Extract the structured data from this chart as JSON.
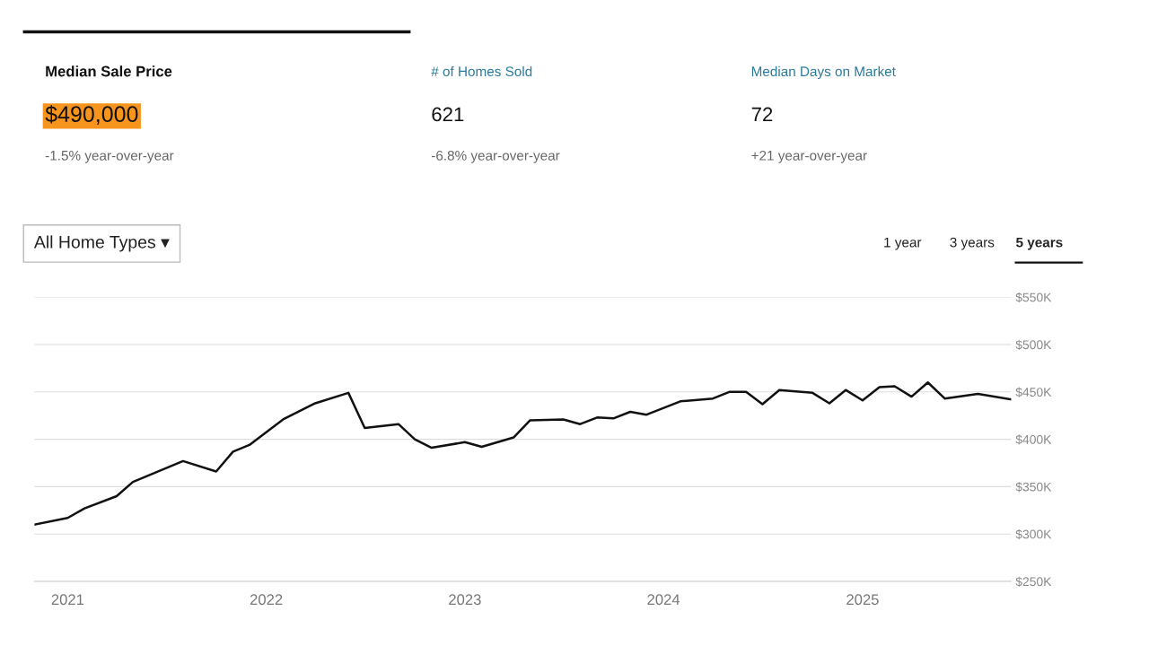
{
  "chart_data": [
    {
      "type": "other",
      "annotations": [
        "Median Sale Price",
        "$490,000",
        "-1.5% year-over-year",
        "# of Homes Sold",
        "621",
        "-6.8% year-over-year",
        "Median Days on Market",
        "72",
        "+21 year-over-year",
        "All Home Types ▾",
        "1 year",
        "3 years",
        "5 years"
      ]
    },
    {
      "type": "line",
      "x": [
        "2020-11",
        "2021-01",
        "2021-02",
        "2021-04",
        "2021-05",
        "2021-08",
        "2021-10",
        "2021-11",
        "2021-12",
        "2022-02",
        "2022-04",
        "2022-06",
        "2022-07",
        "2022-09",
        "2022-10",
        "2022-11",
        "2023-01",
        "2023-02",
        "2023-04",
        "2023-05",
        "2023-07",
        "2023-08",
        "2023-09",
        "2023-10",
        "2023-11",
        "2023-12",
        "2024-02",
        "2024-04",
        "2024-05",
        "2024-06",
        "2024-07",
        "2024-08",
        "2024-10",
        "2024-11",
        "2024-12",
        "2025-01",
        "2025-02",
        "2025-03",
        "2025-04",
        "2025-05",
        "2025-06",
        "2025-08",
        "2025-10"
      ],
      "series": [
        {
          "color": "#111111",
          "values": [
            310000,
            317000,
            327000,
            340000,
            355000,
            377000,
            366000,
            387000,
            394000,
            421000,
            438000,
            449000,
            412000,
            416000,
            400000,
            391000,
            397000,
            392000,
            402000,
            420000,
            421000,
            416000,
            423000,
            422000,
            429000,
            426000,
            440000,
            443000,
            450000,
            450000,
            437000,
            452000,
            449000,
            438000,
            452000,
            441000,
            455000,
            456000,
            445000,
            460000,
            443000,
            448000,
            442000
          ]
        }
      ],
      "xlim": [
        "2020-11",
        "2025-10"
      ],
      "xticks": [
        "2021",
        "2022",
        "2023",
        "2024",
        "2025"
      ],
      "ylim": [
        250000,
        550000
      ],
      "yticks": [
        {
          "value": 250000,
          "label": "$250K"
        },
        {
          "value": 300000,
          "label": "$300K"
        },
        {
          "value": 350000,
          "label": "$350K"
        },
        {
          "value": 400000,
          "label": "$400K"
        },
        {
          "value": 450000,
          "label": "$450K"
        },
        {
          "value": 500000,
          "label": "$500K"
        },
        {
          "value": 550000,
          "label": "$550K"
        }
      ],
      "grid": "y",
      "marker": "none",
      "line_style": "solid"
    }
  ]
}
